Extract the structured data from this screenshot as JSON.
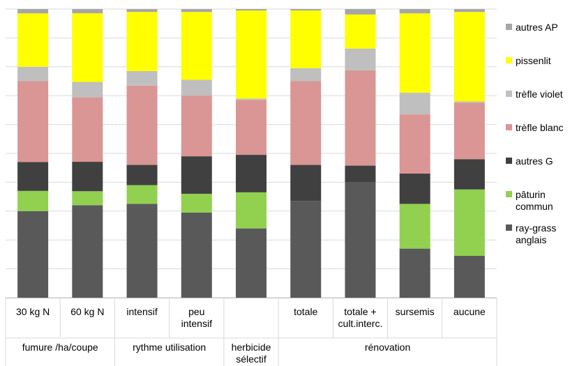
{
  "chart_data": {
    "type": "bar",
    "stacked": true,
    "percent_stacked": true,
    "grid": true,
    "legend_position": "right",
    "categories": [
      "30 kg N",
      "60 kg N",
      "intensif",
      "peu intensif",
      "",
      "totale",
      "totale + cult.interc.",
      "sursemis",
      "aucune"
    ],
    "category_lines": [
      [
        "30 kg N"
      ],
      [
        "60 kg N"
      ],
      [
        "intensif"
      ],
      [
        "peu",
        "intensif"
      ],
      [],
      [
        "totale"
      ],
      [
        "totale +",
        "cult.interc."
      ],
      [
        "sursemis"
      ],
      [
        "aucune"
      ]
    ],
    "groups": [
      {
        "label": "fumure /ha/coupe",
        "lines": [
          "fumure /ha/coupe"
        ],
        "span": 2
      },
      {
        "label": "rythme utilisation",
        "lines": [
          "rythme utilisation"
        ],
        "span": 2
      },
      {
        "label": "herbicide sélectif",
        "lines": [
          "herbicide",
          "sélectif"
        ],
        "span": 1
      },
      {
        "label": "rénovation",
        "lines": [
          "rénovation"
        ],
        "span": 4
      }
    ],
    "series": [
      {
        "name": "ray-grass anglais",
        "lines": [
          "ray-grass",
          "anglais"
        ],
        "color": "#595959",
        "values": [
          30,
          33,
          32.5,
          29.5,
          24,
          33.5,
          42.5,
          17,
          14.5
        ]
      },
      {
        "name": "pâturin commun",
        "lines": [
          "pâturin",
          "commun"
        ],
        "color": "#92d050",
        "values": [
          7,
          5,
          6.5,
          6.5,
          12.5,
          0,
          0,
          15.5,
          23
        ]
      },
      {
        "name": "autres G",
        "lines": [
          "autres G"
        ],
        "color": "#404040",
        "values": [
          10,
          10.5,
          7,
          13,
          13,
          12.5,
          6,
          10.5,
          10.5
        ]
      },
      {
        "name": "trèfle blanc",
        "lines": [
          "trèfle blanc"
        ],
        "color": "#d99694",
        "values": [
          28,
          23,
          27.5,
          21,
          19,
          29,
          35,
          20.5,
          19.5
        ]
      },
      {
        "name": "trèfle violet",
        "lines": [
          "trèfle violet"
        ],
        "color": "#bfbfbf",
        "values": [
          5,
          5.5,
          5,
          5.5,
          0.5,
          4.5,
          8,
          7.5,
          0.5
        ]
      },
      {
        "name": "pissenlit",
        "lines": [
          "pissenlit"
        ],
        "color": "#ffff00",
        "values": [
          18.5,
          24.5,
          20.5,
          23.5,
          30.5,
          20,
          12.5,
          27.5,
          31
        ]
      },
      {
        "name": "autres AP",
        "lines": [
          "autres AP"
        ],
        "color": "#a6a6a6",
        "values": [
          1.5,
          1.5,
          1,
          1,
          0.5,
          0.5,
          2,
          1.5,
          1
        ]
      }
    ]
  }
}
